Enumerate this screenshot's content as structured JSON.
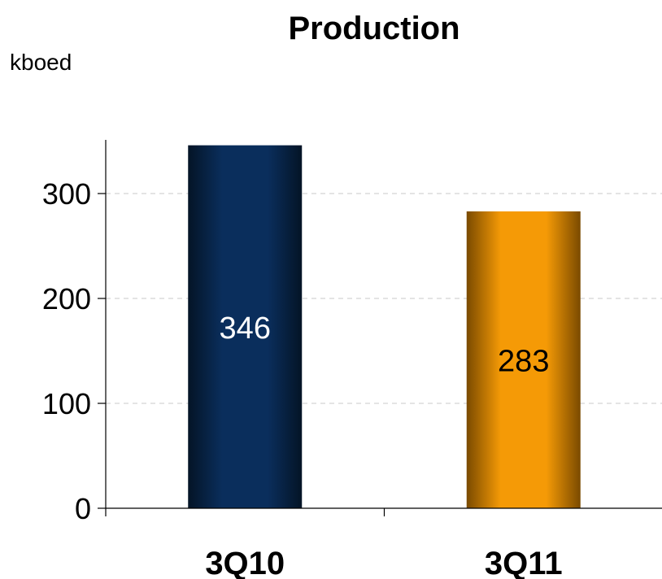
{
  "chart_data": {
    "type": "bar",
    "title": "Production",
    "ylabel": "kboed",
    "xlabel": "",
    "categories": [
      "3Q10",
      "3Q11"
    ],
    "values": [
      346,
      283
    ],
    "data_labels": [
      "346",
      "283"
    ],
    "ylim": [
      0,
      350
    ],
    "yticks": [
      0,
      100,
      200,
      300
    ],
    "grid": true,
    "legend": "none"
  },
  "colors": {
    "bars": [
      "#0a2e5c",
      "#f59a06"
    ],
    "bar_edges": [
      "#041426",
      "#7a4a00"
    ],
    "label_colors": [
      "#ffffff",
      "#000000"
    ],
    "gridline": "#c8c8c8"
  }
}
